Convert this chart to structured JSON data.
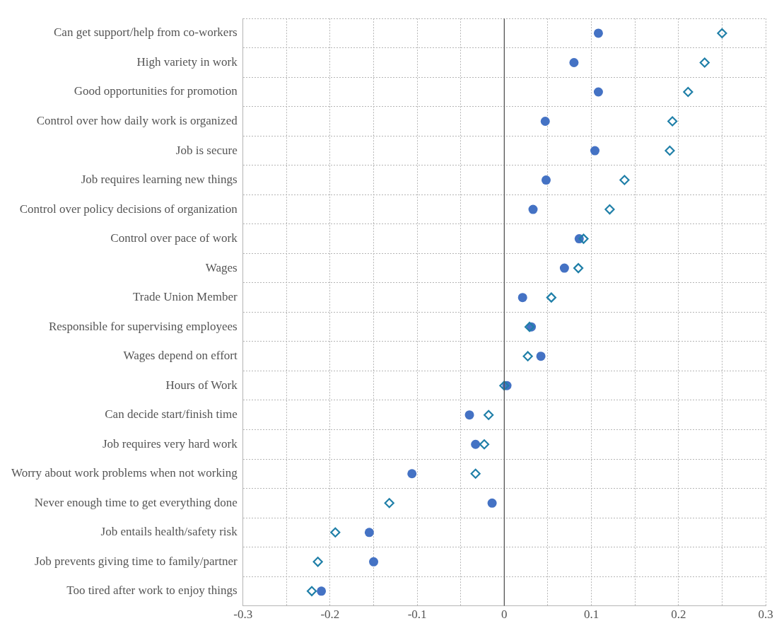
{
  "chart_data": {
    "type": "scatter",
    "categories": [
      "Can get support/help from co-workers",
      "High variety in work",
      "Good opportunities for promotion",
      "Control over how daily work is organized",
      "Job is secure",
      "Job requires learning new things",
      "Control over policy decisions of organization",
      "Control over pace of work",
      "Wages",
      "Trade Union Member",
      "Responsible for supervising employees",
      "Wages depend on effort",
      "Hours of Work",
      "Can decide start/finish time",
      "Job requires very hard work",
      "Worry about work problems when not working",
      "Never enough time to get everything done",
      "Job entails health/safety risk",
      "Job prevents giving time to family/partner",
      "Too tired after work to enjoy things"
    ],
    "orientation": "horizontal",
    "series": [
      {
        "color": "#4472c4",
        "marker": "circle",
        "values": [
          0.108,
          0.08,
          0.108,
          0.047,
          0.104,
          0.048,
          0.033,
          0.086,
          0.069,
          0.021,
          0.031,
          0.042,
          0.003,
          -0.04,
          -0.033,
          -0.106,
          -0.014,
          -0.155,
          -0.15,
          -0.21
        ]
      },
      {
        "color": "#1f7fa8",
        "marker": "diamond",
        "values": [
          0.25,
          0.23,
          0.211,
          0.193,
          0.19,
          0.138,
          0.121,
          0.091,
          0.085,
          0.054,
          0.029,
          0.027,
          0.0,
          -0.018,
          -0.023,
          -0.033,
          -0.132,
          -0.194,
          -0.214,
          -0.221
        ]
      }
    ],
    "xlim": [
      -0.3,
      0.3
    ],
    "xticks": [
      -0.3,
      {
        "value": -0.25,
        "label": null
      },
      -0.2,
      {
        "value": -0.15,
        "label": null
      },
      -0.1,
      {
        "value": -0.05,
        "label": null
      },
      0,
      {
        "value": 0.05,
        "label": null
      },
      0.1,
      {
        "value": 0.15,
        "label": null
      },
      0.2,
      {
        "value": 0.25,
        "label": null
      },
      0.3
    ],
    "ref_lines": [
      {
        "axis": "x",
        "value": 0,
        "color": "#555555"
      }
    ],
    "grid": true,
    "legend": false
  }
}
